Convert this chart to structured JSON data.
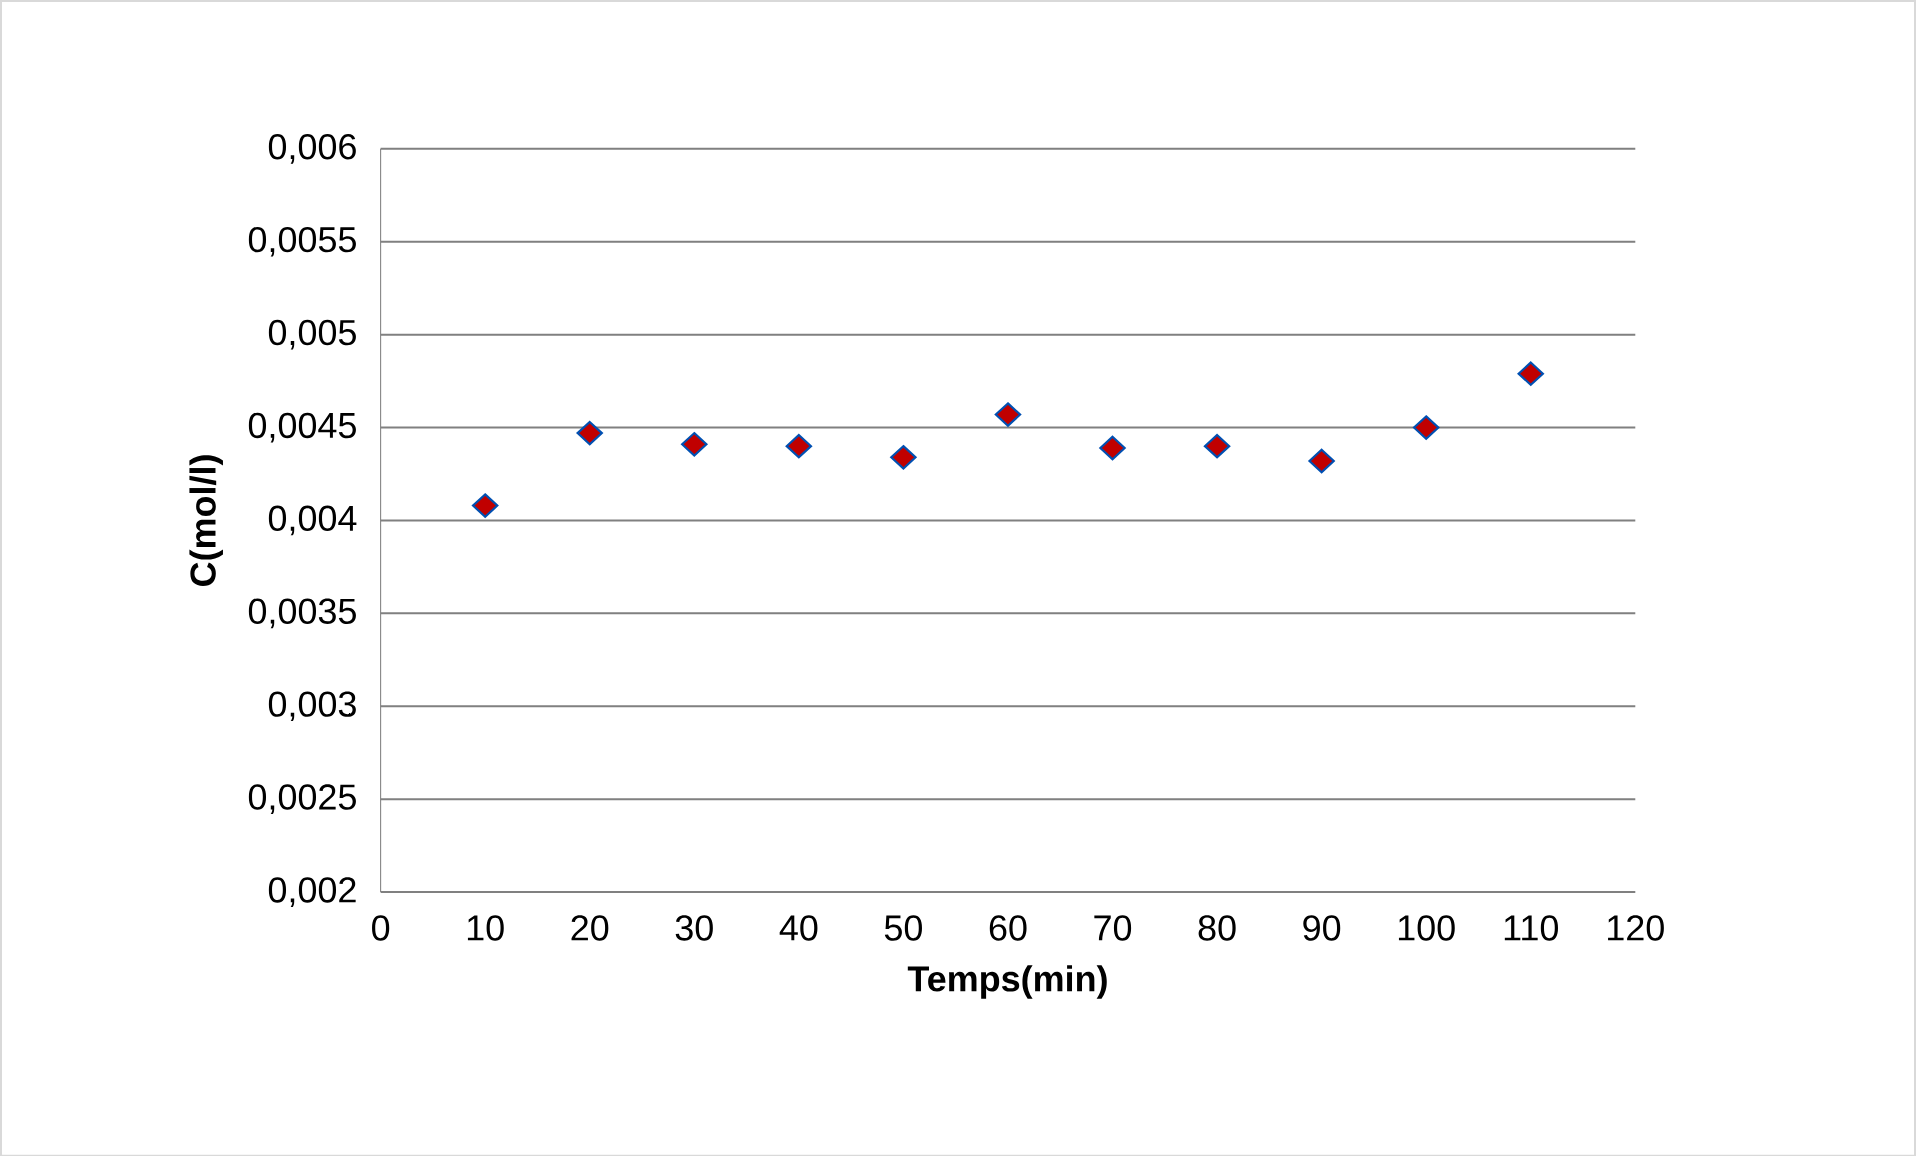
{
  "chart_data": {
    "type": "scatter",
    "xlabel": "Temps(min)",
    "ylabel": "C(mol/l)",
    "x": [
      10,
      20,
      30,
      40,
      50,
      60,
      70,
      80,
      90,
      100,
      110
    ],
    "series": [
      {
        "color": "#c00000",
        "values": [
          0.00408,
          0.00447,
          0.00441,
          0.0044,
          0.00434,
          0.00457,
          0.00439,
          0.0044,
          0.00432,
          0.0045,
          0.00479
        ]
      }
    ],
    "xlim": [
      0,
      120
    ],
    "ylim": [
      0.002,
      0.006
    ],
    "xticks": [
      0,
      10,
      20,
      30,
      40,
      50,
      60,
      70,
      80,
      90,
      100,
      110,
      120
    ],
    "yticks": [
      {
        "value": 0.002,
        "label": "0,002"
      },
      {
        "value": 0.0025,
        "label": "0,0025"
      },
      {
        "value": 0.003,
        "label": "0,003"
      },
      {
        "value": 0.0035,
        "label": "0,0035"
      },
      {
        "value": 0.004,
        "label": "0,004"
      },
      {
        "value": 0.0045,
        "label": "0,0045"
      },
      {
        "value": 0.005,
        "label": "0,005"
      },
      {
        "value": 0.0055,
        "label": "0,0055"
      },
      {
        "value": 0.006,
        "label": "0,006"
      }
    ],
    "grid": "y",
    "marker": "diamond"
  }
}
